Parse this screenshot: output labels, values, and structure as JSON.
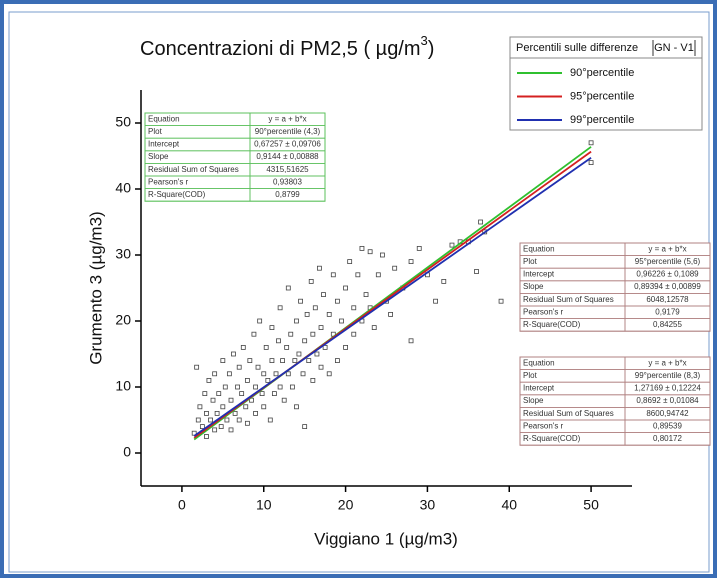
{
  "chart_data": {
    "type": "scatter",
    "title": "Concentrazioni di PM2,5 ( µg/m",
    "title_sup": "3",
    "title_end": ")",
    "x_label": "Viggiano 1 (µg/m3)",
    "y_label": "Grumento 3 (µg/m3)",
    "xlim": [
      -5,
      55
    ],
    "ylim": [
      -5,
      55
    ],
    "xticks": [
      0,
      10,
      20,
      30,
      40,
      50
    ],
    "yticks": [
      0,
      10,
      20,
      30,
      40,
      50
    ],
    "points": {
      "color": "#444444",
      "x": [
        1.5,
        1.8,
        2,
        2.2,
        2.5,
        2.8,
        3,
        3,
        3.3,
        3.5,
        3.8,
        4,
        4,
        4.3,
        4.5,
        4.8,
        5,
        5,
        5.3,
        5.5,
        5.8,
        6,
        6,
        6.3,
        6.5,
        6.8,
        7,
        7,
        7.3,
        7.5,
        7.8,
        8,
        8,
        8.3,
        8.5,
        8.8,
        9,
        9,
        9.3,
        9.5,
        9.8,
        10,
        10,
        10.3,
        10.5,
        10.8,
        11,
        11,
        11.3,
        11.5,
        11.8,
        12,
        12,
        12.3,
        12.5,
        12.8,
        13,
        13,
        13.3,
        13.5,
        13.8,
        14,
        14,
        14.3,
        14.5,
        14.8,
        15,
        15,
        15.3,
        15.5,
        15.8,
        16,
        16,
        16.3,
        16.5,
        16.8,
        17,
        17,
        17.3,
        17.5,
        18,
        18,
        18.5,
        18.5,
        19,
        19,
        19.5,
        20,
        20,
        20.5,
        21,
        21,
        21.5,
        22,
        22,
        22.5,
        23,
        23,
        23.5,
        24,
        24.5,
        25,
        25.5,
        26,
        27,
        28,
        28,
        29,
        30,
        31,
        32,
        33,
        34,
        35,
        36,
        36.5,
        37,
        39,
        50,
        50
      ],
      "y": [
        3,
        13,
        5,
        7,
        4,
        9,
        6,
        2.5,
        11,
        5,
        8,
        3.5,
        12,
        6,
        9,
        4,
        7,
        14,
        10,
        5,
        12,
        8,
        3.5,
        15,
        6,
        10,
        13,
        5,
        9,
        16,
        7,
        11,
        4.5,
        14,
        8,
        18,
        10,
        6,
        13,
        20,
        9,
        12,
        7,
        16,
        11,
        5,
        14,
        19,
        9,
        12,
        17,
        10,
        22,
        14,
        8,
        16,
        12,
        25,
        18,
        10,
        14,
        20,
        7,
        15,
        23,
        12,
        17,
        4,
        21,
        14,
        26,
        18,
        11,
        22,
        15,
        28,
        19,
        13,
        24,
        16,
        21,
        12,
        27,
        18,
        23,
        14,
        20,
        25,
        16,
        29,
        22,
        18,
        27,
        31,
        20,
        24,
        30.5,
        22,
        19,
        27,
        30,
        23,
        21,
        28,
        25,
        29,
        17,
        31,
        27,
        23,
        26,
        31.5,
        32,
        32,
        27.5,
        35,
        33.5,
        23,
        44,
        47
      ]
    },
    "series": [
      {
        "name": "90°percentile",
        "color": "#2fc02f",
        "x": [
          1.5,
          50
        ],
        "y": [
          2.04,
          46.39
        ]
      },
      {
        "name": "95°percentile",
        "color": "#d42020",
        "x": [
          1.5,
          50
        ],
        "y": [
          2.3,
          45.66
        ]
      },
      {
        "name": "99°percentile",
        "color": "#2030b0",
        "x": [
          1.5,
          50
        ],
        "y": [
          2.58,
          44.73
        ]
      }
    ],
    "legend_title": "Percentili sulle differenze",
    "legend_title_box": "GN - V1",
    "tables": [
      {
        "color": "#5cc05c",
        "rows": [
          [
            "Equation",
            "y = a + b*x"
          ],
          [
            "Plot",
            "90°percentile (4,3)"
          ],
          [
            "Intercept",
            "0,67257 ± 0,09706"
          ],
          [
            "Slope",
            "0,9144 ± 0,00888"
          ],
          [
            "Residual Sum of Squares",
            "4315,51625"
          ],
          [
            "Pearson's r",
            "0,93803"
          ],
          [
            "R-Square(COD)",
            "0,8799"
          ]
        ]
      },
      {
        "color": "#b08080",
        "rows": [
          [
            "Equation",
            "y = a + b*x"
          ],
          [
            "Plot",
            "95°percentile (5,6)"
          ],
          [
            "Intercept",
            "0,96226 ± 0,1089"
          ],
          [
            "Slope",
            "0,89394 ± 0,00899"
          ],
          [
            "Residual Sum of Squares",
            "6048,12578"
          ],
          [
            "Pearson's r",
            "0,9179"
          ],
          [
            "R-Square(COD)",
            "0,84255"
          ]
        ]
      },
      {
        "color": "#b08080",
        "rows": [
          [
            "Equation",
            "y = a + b*x"
          ],
          [
            "Plot",
            "99°percentile (8,3)"
          ],
          [
            "Intercept",
            "1,27169 ± 0,12224"
          ],
          [
            "Slope",
            "0,8692 ± 0,01084"
          ],
          [
            "Residual Sum of Squares",
            "8600,94742"
          ],
          [
            "Pearson's r",
            "0,89539"
          ],
          [
            "R-Square(COD)",
            "0,80172"
          ]
        ]
      }
    ]
  }
}
